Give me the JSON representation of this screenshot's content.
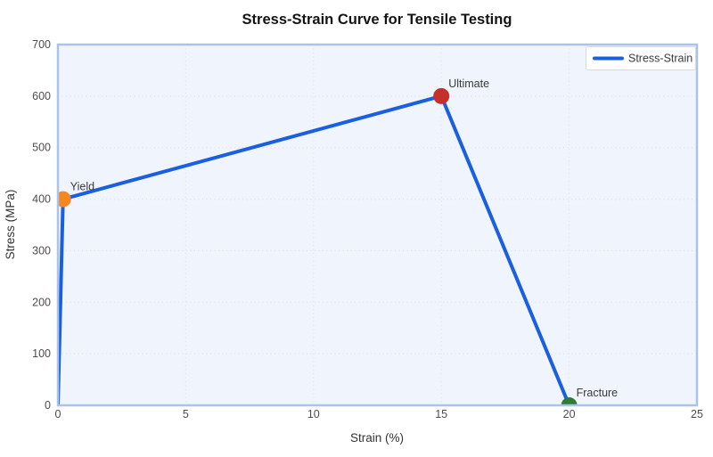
{
  "title": "Stress-Strain Curve for Tensile Testing",
  "chart_data": {
    "type": "line",
    "series": [
      {
        "name": "Stress-Strain",
        "color": "#1a5fe0",
        "points": [
          [
            0,
            0
          ],
          [
            0.2,
            400
          ],
          [
            15,
            600
          ],
          [
            20,
            0
          ]
        ]
      }
    ],
    "xlabel": "Strain (%)",
    "ylabel": "Stress (MPa)",
    "xlim": [
      0,
      25
    ],
    "ylim": [
      0,
      700
    ],
    "xticks": [
      0,
      5,
      10,
      15,
      20,
      25
    ],
    "yticks": [
      0,
      100,
      200,
      300,
      400,
      500,
      600,
      700
    ],
    "grid": true,
    "legend_position": "top-right",
    "annotations": [
      {
        "label": "Yield",
        "x": 0.2,
        "y": 400,
        "marker_color": "#f6871f"
      },
      {
        "label": "Ultimate",
        "x": 15,
        "y": 600,
        "marker_color": "#c5302c"
      },
      {
        "label": "Fracture",
        "x": 20,
        "y": 0,
        "marker_color": "#2e7d33"
      }
    ]
  },
  "colors": {
    "plot_bg": "#f0f4fc",
    "plot_border": "#a9c3ee",
    "h_grid": "#e8dede",
    "v_grid": "#d9e4f6",
    "legend_border": "#d9d9d9",
    "legend_bg": "#ffffff"
  }
}
